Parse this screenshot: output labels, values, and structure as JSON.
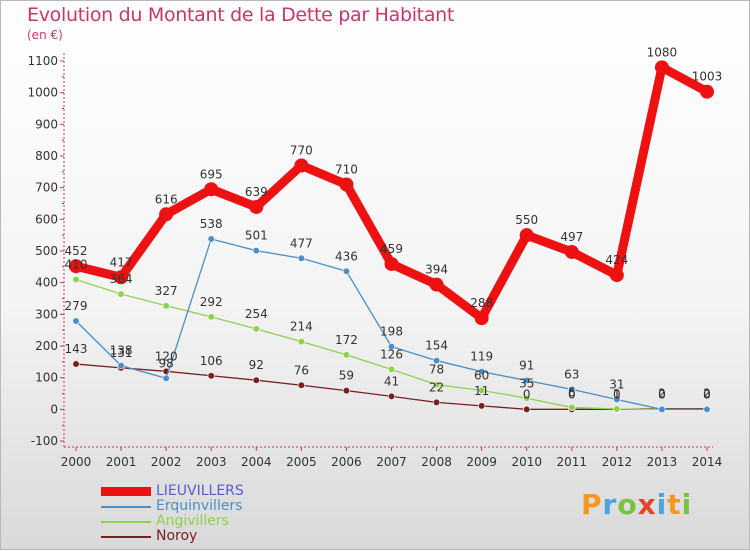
{
  "title": "Evolution du Montant de la Dette par Habitant",
  "unit": "(en €)",
  "logo": {
    "text": "Proxiti",
    "letters": [
      {
        "ch": "P",
        "color": "#f59a1f"
      },
      {
        "ch": "r",
        "color": "#4fa3df"
      },
      {
        "ch": "o",
        "color": "#7cc242"
      },
      {
        "ch": "x",
        "color": "#e8412c"
      },
      {
        "ch": "i",
        "color": "#4fa3df"
      },
      {
        "ch": "t",
        "color": "#f59a1f"
      },
      {
        "ch": "i",
        "color": "#7cc242"
      }
    ]
  },
  "chart_data": {
    "type": "line",
    "x": [
      2000,
      2001,
      2002,
      2003,
      2004,
      2005,
      2006,
      2007,
      2008,
      2009,
      2010,
      2011,
      2012,
      2013,
      2014
    ],
    "ylim": [
      -100,
      1100
    ],
    "yticks": [
      -100,
      0,
      100,
      200,
      300,
      400,
      500,
      600,
      700,
      800,
      900,
      1000,
      1100
    ],
    "grid": false,
    "legend_position": "bottom-left",
    "series": [
      {
        "name": "LIEUVILLERS",
        "color": "#ee1111",
        "label_color": "#5b5bd6",
        "values": [
          452,
          417,
          616,
          695,
          639,
          770,
          710,
          459,
          394,
          288,
          550,
          497,
          424,
          1080,
          1003
        ]
      },
      {
        "name": "Erquinvillers",
        "color": "#4a8fc9",
        "label_color": "#4a8fc9",
        "values": [
          279,
          138,
          98,
          538,
          501,
          477,
          436,
          198,
          154,
          119,
          91,
          63,
          31,
          0,
          0
        ]
      },
      {
        "name": "Angivillers",
        "color": "#8ed14f",
        "label_color": "#8ed14f",
        "values": [
          410,
          364,
          327,
          292,
          254,
          214,
          172,
          126,
          78,
          60,
          35,
          6,
          1,
          0,
          0
        ]
      },
      {
        "name": "Noroy",
        "color": "#7a1f1f",
        "label_color": "#7a1f1f",
        "values": [
          143,
          131,
          120,
          106,
          92,
          76,
          59,
          41,
          22,
          11,
          0,
          0,
          0,
          2,
          2
        ]
      }
    ]
  }
}
